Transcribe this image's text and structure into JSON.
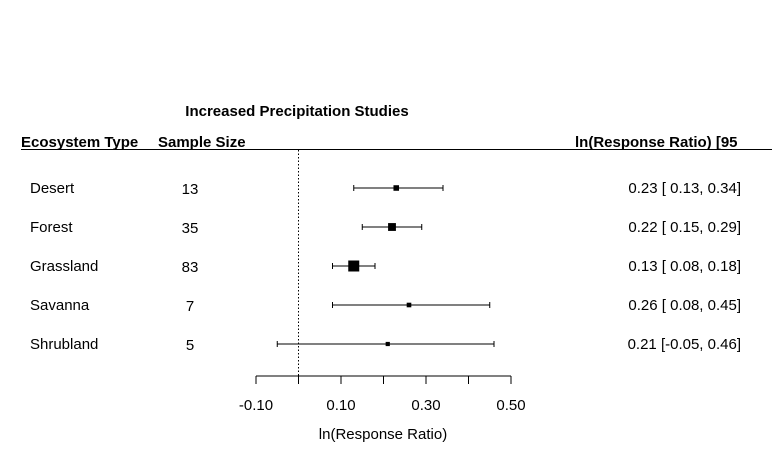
{
  "chart_data": {
    "type": "forest",
    "title": "Increased Precipitation Studies",
    "header": {
      "ecosystem_col": "Ecosystem Type",
      "sample_col": "Sample Size",
      "estimate_col": "ln(Response Ratio) [95"
    },
    "xlabel": "ln(Response Ratio)",
    "xlim": [
      -0.1,
      0.5
    ],
    "reference_line": 0,
    "x_ticks": [
      -0.1,
      0.0,
      0.1,
      0.2,
      0.3,
      0.4,
      0.5
    ],
    "x_tick_labels": [
      "-0.10",
      "",
      "0.10",
      "",
      "0.30",
      "",
      "0.50"
    ],
    "rows": [
      {
        "ecosystem": "Desert",
        "n": "13",
        "estimate": 0.23,
        "lower": 0.13,
        "upper": 0.34,
        "ci_text": "0.23 [ 0.13, 0.34]"
      },
      {
        "ecosystem": "Forest",
        "n": "35",
        "estimate": 0.22,
        "lower": 0.15,
        "upper": 0.29,
        "ci_text": "0.22 [ 0.15, 0.29]"
      },
      {
        "ecosystem": "Grassland",
        "n": "83",
        "estimate": 0.13,
        "lower": 0.08,
        "upper": 0.18,
        "ci_text": "0.13 [ 0.08, 0.18]"
      },
      {
        "ecosystem": "Savanna",
        "n": "7",
        "estimate": 0.26,
        "lower": 0.08,
        "upper": 0.45,
        "ci_text": "0.26 [ 0.08, 0.45]"
      },
      {
        "ecosystem": "Shrubland",
        "n": "5",
        "estimate": 0.21,
        "lower": -0.05,
        "upper": 0.46,
        "ci_text": "0.21 [-0.05, 0.46]"
      }
    ]
  }
}
